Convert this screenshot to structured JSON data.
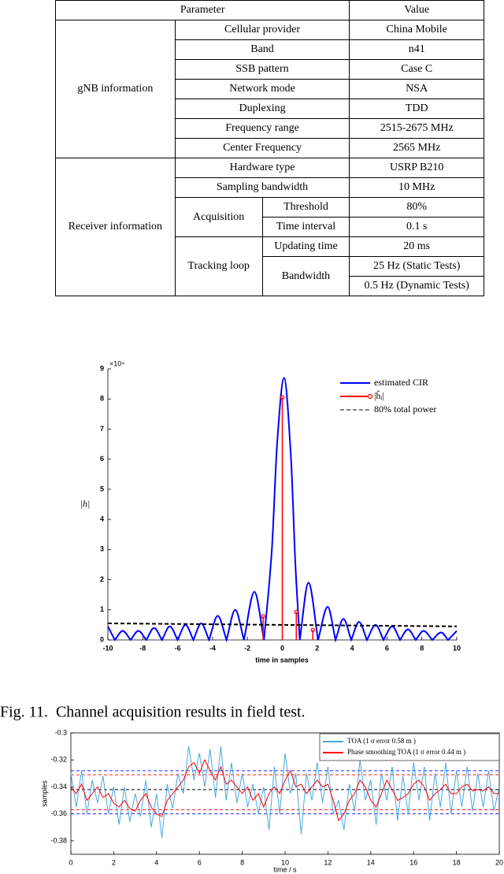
{
  "table": {
    "header": [
      "Parameter",
      "Value"
    ],
    "gnb": {
      "label": "gNB information",
      "rows": [
        [
          "Cellular provider",
          "China Mobile"
        ],
        [
          "Band",
          "n41"
        ],
        [
          "SSB pattern",
          "Case C"
        ],
        [
          "Network mode",
          "NSA"
        ],
        [
          "Duplexing",
          "TDD"
        ],
        [
          "Frequency range",
          "2515-2675 MHz"
        ],
        [
          "Center Frequency",
          "2565 MHz"
        ]
      ]
    },
    "receiver": {
      "label": "Receiver information",
      "rows": [
        [
          "Hardware type",
          "USRP B210"
        ],
        [
          "Sampling bandwidth",
          "10 MHz"
        ]
      ],
      "acquisition": {
        "label": "Acquisition",
        "rows": [
          [
            "Threshold",
            "80%"
          ],
          [
            "Time interval",
            "0.1 s"
          ]
        ]
      },
      "tracking": {
        "label": "Tracking loop",
        "rows": [
          [
            "Updating time",
            "20 ms"
          ]
        ],
        "bandwidth": {
          "label": "Bandwidth",
          "values": [
            "25 Hz (Static Tests)",
            "0.5 Hz (Dynamic Tests)"
          ]
        }
      }
    }
  },
  "chart_data": [
    {
      "type": "line",
      "smooth": true,
      "y_label": "|h|",
      "x_label": "time in samples",
      "y_multiplier": "×10⁴",
      "xlim": [
        -10,
        10
      ],
      "ylim": [
        0,
        9
      ],
      "xticks": [
        -10,
        -8,
        -6,
        -4,
        -2,
        0,
        2,
        4,
        6,
        8,
        10
      ],
      "yticks": [
        0,
        1,
        2,
        3,
        4,
        5,
        6,
        7,
        8,
        9
      ],
      "legend": "upper right",
      "series": [
        {
          "name": "estimated CIR",
          "color": "#0000ff",
          "style": "solid",
          "x": [
            -10,
            -9.6,
            -9.15,
            -8.7,
            -8.25,
            -7.8,
            -7.35,
            -6.9,
            -6.45,
            -6,
            -5.55,
            -5.1,
            -4.65,
            -4.2,
            -3.7,
            -3.2,
            -2.7,
            -2.2,
            -1.6,
            -1.05,
            -0.6,
            -0.3,
            0.1,
            0.5,
            0.75,
            1,
            1.5,
            2.05,
            2.6,
            3.05,
            3.5,
            3.95,
            4.4,
            4.85,
            5.35,
            5.8,
            6.3,
            6.75,
            7.2,
            7.65,
            8.1,
            8.6,
            9.1,
            9.5,
            10
          ],
          "values": [
            0.45,
            0,
            0.3,
            0,
            0.3,
            0,
            0.4,
            0,
            0.45,
            0,
            0.5,
            0,
            0.55,
            0,
            0.8,
            0,
            1.0,
            0,
            1.6,
            0,
            3.0,
            6.5,
            8.7,
            6.0,
            2.5,
            0,
            1.9,
            0,
            1.1,
            0,
            0.7,
            0,
            0.6,
            0,
            0.5,
            0,
            0.45,
            0,
            0.35,
            0,
            0.3,
            0,
            0.25,
            0,
            0.3
          ]
        },
        {
          "name": "|ĥᵢ|",
          "color": "#ff0000",
          "style": "stem",
          "x": [
            -1.1,
            0,
            0.8,
            1.75
          ],
          "values": [
            0.78,
            8.05,
            0.93,
            0.33
          ]
        },
        {
          "name": "80% total power",
          "color": "#000000",
          "style": "dashed",
          "x": [
            -10,
            10
          ],
          "values": [
            0.55,
            0.45
          ]
        }
      ]
    },
    {
      "type": "line",
      "smooth": false,
      "boxed": true,
      "y_label": "samples",
      "x_label": "time / s",
      "xlim": [
        0,
        20
      ],
      "ylim": [
        -0.39,
        -0.3
      ],
      "xticks": [
        0,
        2,
        4,
        6,
        8,
        10,
        12,
        14,
        16,
        18,
        20
      ],
      "yticks": [
        -0.3,
        -0.32,
        -0.34,
        -0.36,
        -0.38
      ],
      "legend": "upper right",
      "reference_lines": [
        {
          "value": -0.328,
          "color": "#0000ff"
        },
        {
          "value": -0.331,
          "color": "#ff0000"
        },
        {
          "value": -0.342,
          "color": "#000000"
        },
        {
          "value": -0.357,
          "color": "#ff0000"
        },
        {
          "value": -0.36,
          "color": "#0000ff"
        }
      ],
      "series": [
        {
          "name": "TOA (1 σ error 0.58 m )",
          "color": "#4aa8e0",
          "style": "solid",
          "x": [
            0,
            0.25,
            0.5,
            0.75,
            1,
            1.25,
            1.5,
            1.75,
            2,
            2.25,
            2.5,
            2.75,
            3,
            3.25,
            3.5,
            3.75,
            4,
            4.25,
            4.5,
            4.75,
            5,
            5.25,
            5.5,
            5.75,
            6,
            6.25,
            6.5,
            6.75,
            7,
            7.25,
            7.5,
            7.75,
            8,
            8.25,
            8.5,
            8.75,
            9,
            9.25,
            9.5,
            9.75,
            10,
            10.25,
            10.5,
            10.75,
            11,
            11.25,
            11.5,
            11.75,
            12,
            12.25,
            12.5,
            12.75,
            13,
            13.25,
            13.5,
            13.75,
            14,
            14.25,
            14.5,
            14.75,
            15,
            15.25,
            15.5,
            15.75,
            16,
            16.25,
            16.5,
            16.75,
            17,
            17.25,
            17.5,
            17.75,
            18,
            18.25,
            18.5,
            18.75,
            19,
            19.25,
            19.5,
            19.75,
            20
          ],
          "values": [
            -0.33,
            -0.355,
            -0.328,
            -0.36,
            -0.335,
            -0.352,
            -0.332,
            -0.36,
            -0.34,
            -0.368,
            -0.34,
            -0.366,
            -0.345,
            -0.362,
            -0.335,
            -0.37,
            -0.345,
            -0.378,
            -0.338,
            -0.356,
            -0.33,
            -0.345,
            -0.31,
            -0.335,
            -0.315,
            -0.34,
            -0.312,
            -0.348,
            -0.31,
            -0.35,
            -0.322,
            -0.352,
            -0.33,
            -0.355,
            -0.338,
            -0.36,
            -0.34,
            -0.372,
            -0.325,
            -0.36,
            -0.315,
            -0.345,
            -0.33,
            -0.375,
            -0.33,
            -0.35,
            -0.322,
            -0.352,
            -0.325,
            -0.36,
            -0.35,
            -0.372,
            -0.338,
            -0.358,
            -0.32,
            -0.35,
            -0.335,
            -0.368,
            -0.33,
            -0.35,
            -0.325,
            -0.365,
            -0.332,
            -0.36,
            -0.322,
            -0.35,
            -0.325,
            -0.365,
            -0.33,
            -0.355,
            -0.322,
            -0.36,
            -0.328,
            -0.355,
            -0.325,
            -0.358,
            -0.33,
            -0.355,
            -0.328,
            -0.358,
            -0.34
          ]
        },
        {
          "name": "Phase smoothing TOA (1 σ error 0.44 m )",
          "color": "#ff0000",
          "style": "solid",
          "x": [
            0,
            0.25,
            0.5,
            0.75,
            1,
            1.25,
            1.5,
            1.75,
            2,
            2.25,
            2.5,
            2.75,
            3,
            3.25,
            3.5,
            3.75,
            4,
            4.25,
            4.5,
            4.75,
            5,
            5.25,
            5.5,
            5.75,
            6,
            6.25,
            6.5,
            6.75,
            7,
            7.25,
            7.5,
            7.75,
            8,
            8.25,
            8.5,
            8.75,
            9,
            9.25,
            9.5,
            9.75,
            10,
            10.25,
            10.5,
            10.75,
            11,
            11.25,
            11.5,
            11.75,
            12,
            12.25,
            12.5,
            12.75,
            13,
            13.25,
            13.5,
            13.75,
            14,
            14.25,
            14.5,
            14.75,
            15,
            15.25,
            15.5,
            15.75,
            16,
            16.25,
            16.5,
            16.75,
            17,
            17.25,
            17.5,
            17.75,
            18,
            18.25,
            18.5,
            18.75,
            19,
            19.25,
            19.5,
            19.75,
            20
          ],
          "values": [
            -0.34,
            -0.345,
            -0.338,
            -0.35,
            -0.345,
            -0.34,
            -0.348,
            -0.345,
            -0.352,
            -0.355,
            -0.35,
            -0.356,
            -0.358,
            -0.35,
            -0.345,
            -0.355,
            -0.36,
            -0.362,
            -0.35,
            -0.345,
            -0.34,
            -0.335,
            -0.325,
            -0.322,
            -0.33,
            -0.32,
            -0.328,
            -0.335,
            -0.325,
            -0.338,
            -0.335,
            -0.34,
            -0.345,
            -0.34,
            -0.35,
            -0.345,
            -0.355,
            -0.345,
            -0.34,
            -0.345,
            -0.335,
            -0.328,
            -0.34,
            -0.338,
            -0.345,
            -0.34,
            -0.335,
            -0.34,
            -0.338,
            -0.35,
            -0.365,
            -0.36,
            -0.35,
            -0.345,
            -0.335,
            -0.34,
            -0.35,
            -0.355,
            -0.345,
            -0.335,
            -0.342,
            -0.35,
            -0.348,
            -0.345,
            -0.338,
            -0.335,
            -0.34,
            -0.35,
            -0.345,
            -0.342,
            -0.338,
            -0.345,
            -0.345,
            -0.34,
            -0.338,
            -0.343,
            -0.342,
            -0.343,
            -0.34,
            -0.345,
            -0.345
          ]
        }
      ]
    }
  ],
  "caption": "Fig. 11.  Channel acquisition results in field test."
}
